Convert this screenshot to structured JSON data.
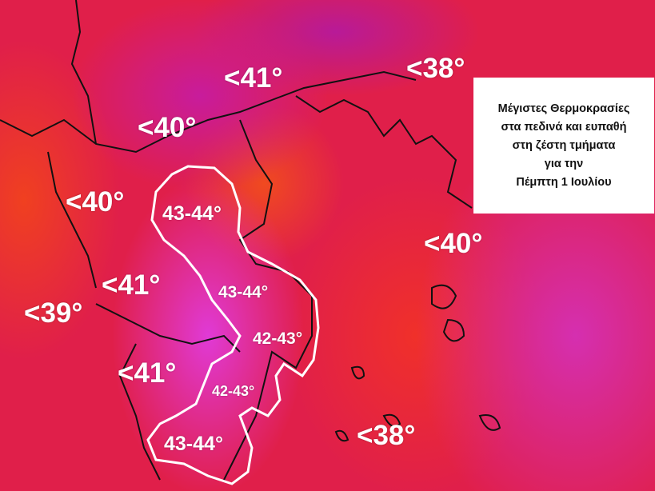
{
  "legend": {
    "lines": [
      "Μέγιστες Θερμοκρασίες",
      "στα πεδινά και ευπαθή",
      "στη ζέστη τμήματα",
      "για την",
      "Πέμπτη 1 Ιουλίου"
    ]
  },
  "labels": [
    {
      "text": "<41°"
    },
    {
      "text": "<38°"
    },
    {
      "text": "<40°"
    },
    {
      "text": "<40°"
    },
    {
      "text": "43-44°"
    },
    {
      "text": "<40°"
    },
    {
      "text": "<41°"
    },
    {
      "text": "43-44°"
    },
    {
      "text": "<39°"
    },
    {
      "text": "42-43°"
    },
    {
      "text": "<41°"
    },
    {
      "text": "42-43°"
    },
    {
      "text": "<38°"
    },
    {
      "text": "43-44°"
    }
  ],
  "colors": {
    "hot_zone_outline": "#ffffff",
    "base_red": "#e01f4a",
    "magenta": "#e03ad6",
    "orange": "#f04a20",
    "borders": "#000000"
  }
}
